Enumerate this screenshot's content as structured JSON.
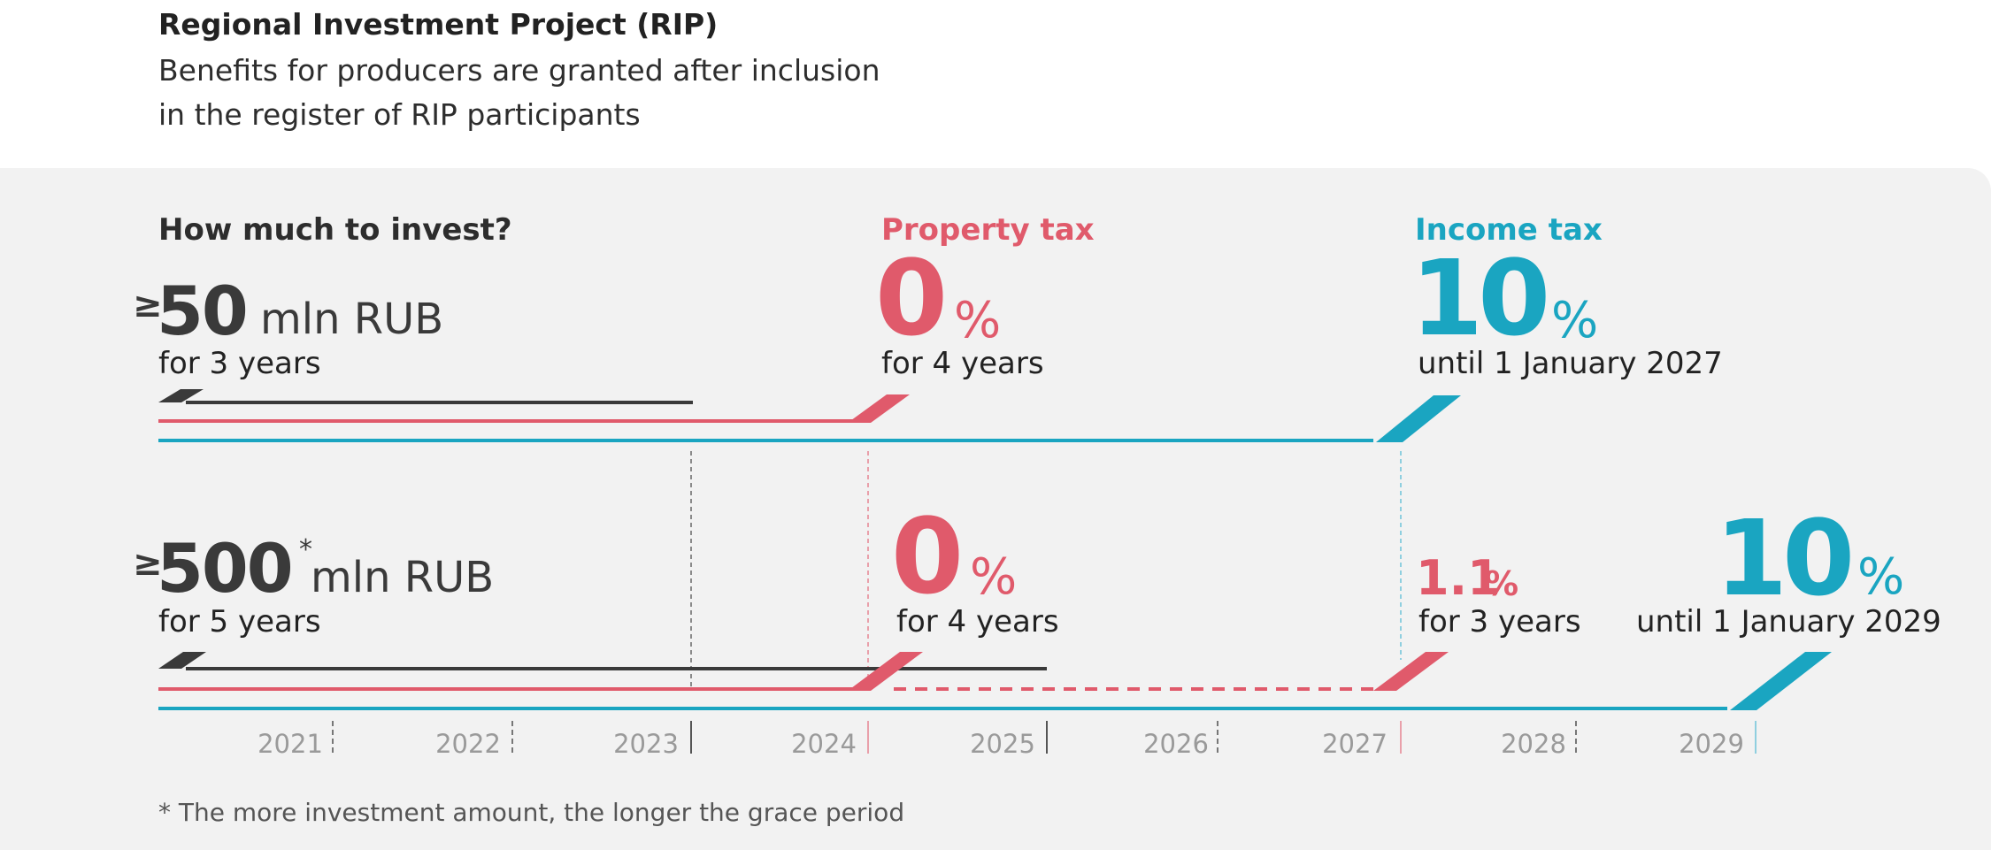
{
  "header": {
    "title": "Regional Investment Project (RIP)",
    "subtitle_line1": "Benefits for producers are granted after inclusion",
    "subtitle_line2": "in the register of RIP participants"
  },
  "columns": {
    "invest_heading": "How much to invest?",
    "property_heading": "Property tax",
    "income_heading": "Income tax"
  },
  "rows": [
    {
      "ge": "≥",
      "amount": "50",
      "unit": "mln RUB",
      "invest_duration": "for 3 years",
      "property_rate": "0",
      "property_pct": "%",
      "property_duration": "for 4 years",
      "income_rate": "10",
      "income_pct": "%",
      "income_duration": "until 1 January 2027"
    },
    {
      "ge": "≥",
      "amount": "500",
      "asterisk": "*",
      "unit": "mln RUB",
      "invest_duration": "for 5 years",
      "property_rate": "0",
      "property_pct": "%",
      "property_duration": "for 4 years",
      "property_rate_2": "1.1",
      "property_pct_2": "%",
      "property_duration_2": "for 3 years",
      "income_rate": "10",
      "income_pct": "%",
      "income_duration": "until 1 January 2029"
    }
  ],
  "timeline": {
    "years": [
      "2021",
      "2022",
      "2023",
      "2024",
      "2025",
      "2026",
      "2027",
      "2028",
      "2029"
    ]
  },
  "colors": {
    "investment": "#3a3a3a",
    "property_tax": "#e05a6b",
    "income_tax": "#1aa5c1",
    "panel_background": "#f2f2f2"
  },
  "footnote": "* The more investment amount, the longer the grace period"
}
